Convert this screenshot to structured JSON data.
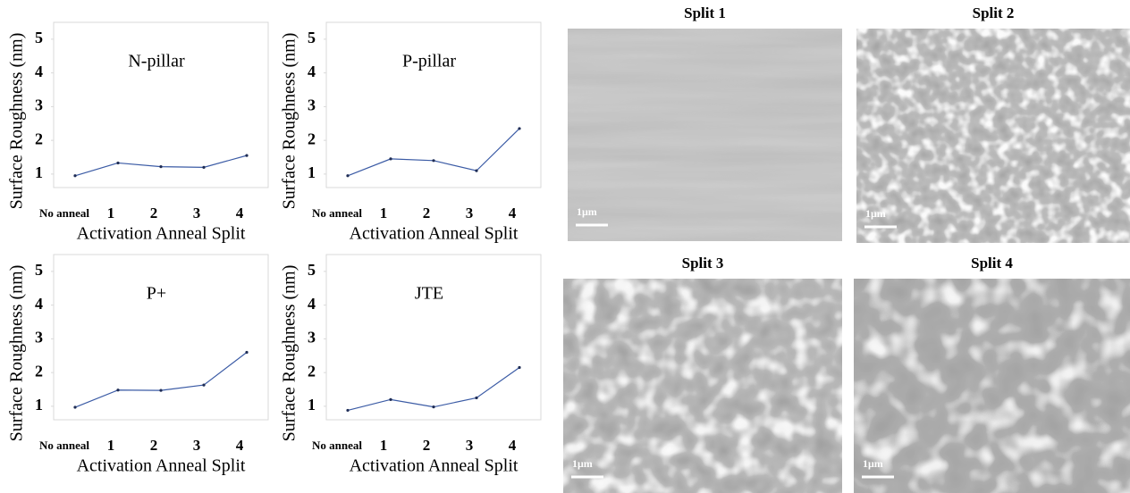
{
  "chart_data": [
    {
      "type": "line",
      "annotation": "N-pillar",
      "y_label": "Surface Roughness (nm)",
      "x_label": "Activation Anneal Split",
      "categories": [
        "No anneal",
        "1",
        "2",
        "3",
        "4"
      ],
      "series": [
        {
          "color": "#3b5ba5",
          "values": [
            0.95,
            1.33,
            1.22,
            1.2,
            1.55
          ]
        }
      ],
      "ylim": [
        0.6,
        5.5
      ],
      "yticks": [
        1,
        2,
        3,
        4,
        5
      ]
    },
    {
      "type": "line",
      "annotation": "P-pillar",
      "y_label": "Surface Roughness (nm)",
      "x_label": "Activation Anneal Split",
      "categories": [
        "No anneal",
        "1",
        "2",
        "3",
        "4"
      ],
      "series": [
        {
          "color": "#3b5ba5",
          "values": [
            0.95,
            1.45,
            1.4,
            1.1,
            2.35
          ]
        }
      ],
      "ylim": [
        0.6,
        5.5
      ],
      "yticks": [
        1,
        2,
        3,
        4,
        5
      ]
    },
    {
      "type": "line",
      "annotation": "P+",
      "y_label": "Surface Roughness (nm)",
      "x_label": "Activation Anneal Split",
      "categories": [
        "No anneal",
        "1",
        "2",
        "3",
        "4"
      ],
      "series": [
        {
          "color": "#3b5ba5",
          "values": [
            0.97,
            1.48,
            1.47,
            1.63,
            2.6
          ]
        }
      ],
      "ylim": [
        0.6,
        5.5
      ],
      "yticks": [
        1,
        2,
        3,
        4,
        5
      ]
    },
    {
      "type": "line",
      "annotation": "JTE",
      "y_label": "Surface Roughness (nm)",
      "x_label": "Activation Anneal Split",
      "categories": [
        "No anneal",
        "1",
        "2",
        "3",
        "4"
      ],
      "series": [
        {
          "color": "#3b5ba5",
          "values": [
            0.88,
            1.2,
            0.98,
            1.25,
            2.15
          ]
        }
      ],
      "ylim": [
        0.6,
        5.5
      ],
      "yticks": [
        1,
        2,
        3,
        4,
        5
      ]
    }
  ],
  "images": [
    {
      "title": "Split 1",
      "scale_bar": "1μm"
    },
    {
      "title": "Split 2",
      "scale_bar": "1μm"
    },
    {
      "title": "Split 3",
      "scale_bar": "1μm"
    },
    {
      "title": "Split 4",
      "scale_bar": "1μm"
    }
  ]
}
